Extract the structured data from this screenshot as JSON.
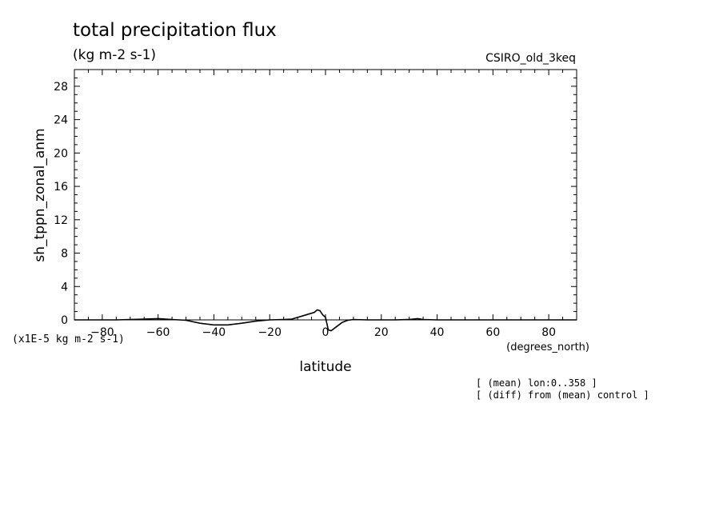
{
  "chart_data": {
    "type": "line",
    "title": "total precipitation flux",
    "subtitle": "(kg m-2 s-1)",
    "model": "CSIRO_old_3keq",
    "ylabel": "sh_tppn_zonal_anm",
    "yunits": "(x1E-5 kg m-2 s-1)",
    "xlabel": "latitude",
    "xunits": "(degrees_north)",
    "notes": [
      "[ (mean) lon:0..358 ]",
      "[ (diff) from (mean) control ]"
    ],
    "xlim": [
      -90,
      90
    ],
    "ylim": [
      0,
      30
    ],
    "xticks": [
      -80,
      -60,
      -40,
      -20,
      0,
      20,
      40,
      60,
      80
    ],
    "yticks": [
      0,
      4,
      8,
      12,
      16,
      20,
      24,
      28
    ],
    "grid": false,
    "series": [
      {
        "x": [
          -90,
          -85,
          -80,
          -75,
          -70,
          -65,
          -60,
          -55,
          -50,
          -45,
          -40,
          -35,
          -30,
          -25,
          -20,
          -15,
          -12,
          -10,
          -8,
          -6,
          -4,
          -3,
          -2,
          -1,
          0,
          1,
          2,
          4,
          6,
          8,
          10,
          15,
          20,
          25,
          30,
          33,
          35,
          40,
          50,
          60,
          70,
          80,
          90
        ],
        "y": [
          0,
          0,
          0,
          0,
          0.05,
          0.1,
          0.15,
          0.05,
          -0.05,
          -0.4,
          -0.6,
          -0.6,
          -0.4,
          -0.15,
          0,
          0.05,
          0.1,
          0.3,
          0.5,
          0.7,
          0.9,
          1.2,
          1.1,
          0.6,
          0.3,
          -1.2,
          -1.3,
          -0.8,
          -0.3,
          -0.05,
          0.05,
          0,
          0,
          0,
          0.05,
          0.15,
          0.05,
          0,
          0,
          0,
          0,
          0,
          0
        ]
      }
    ]
  }
}
